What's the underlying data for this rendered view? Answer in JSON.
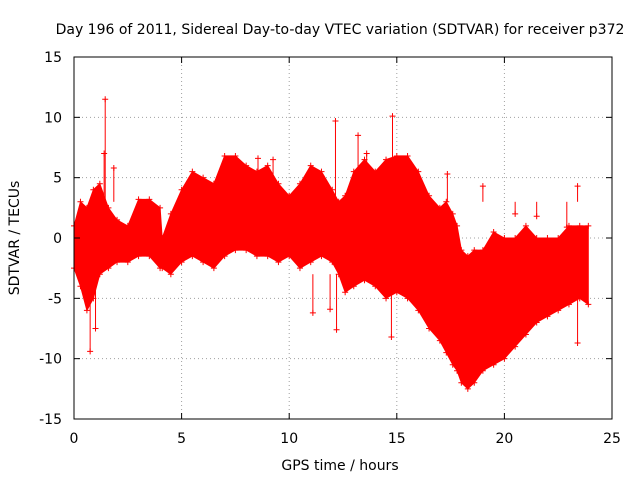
{
  "chart_data": {
    "type": "scatter",
    "title": "Day 196 of 2011, Sidereal Day-to-day VTEC variation (SDTVAR) for receiver p372",
    "xlabel": "GPS time / hours",
    "ylabel": "SDTVAR / TECUs",
    "xlim": [
      0,
      25
    ],
    "ylim": [
      -15,
      15
    ],
    "xticks": [
      0,
      5,
      10,
      15,
      20,
      25
    ],
    "yticks": [
      -15,
      -10,
      -5,
      0,
      5,
      10,
      15
    ],
    "grid": true,
    "series_color": "#ff0000",
    "marker": "+",
    "envelope": {
      "x": [
        0.0,
        0.3,
        0.6,
        0.9,
        1.2,
        1.6,
        2.0,
        2.5,
        3.0,
        3.5,
        4.0,
        4.1,
        4.5,
        5.0,
        5.5,
        6.0,
        6.5,
        7.0,
        7.5,
        8.0,
        8.5,
        9.0,
        9.5,
        10.0,
        10.5,
        11.0,
        11.5,
        12.0,
        12.3,
        12.6,
        13.0,
        13.5,
        14.0,
        14.5,
        15.0,
        15.5,
        16.0,
        16.5,
        17.0,
        17.3,
        17.6,
        17.8,
        18.0,
        18.3,
        18.6,
        19.0,
        19.5,
        20.0,
        20.5,
        21.0,
        21.5,
        22.0,
        22.5,
        23.0,
        23.5,
        23.9
      ],
      "upper": [
        1.0,
        3.0,
        2.5,
        4.0,
        4.5,
        2.5,
        1.5,
        1.0,
        3.2,
        3.2,
        2.5,
        0.0,
        2.0,
        4.0,
        5.5,
        5.0,
        4.5,
        6.8,
        6.8,
        6.0,
        5.5,
        6.0,
        4.5,
        3.5,
        4.5,
        6.0,
        5.5,
        4.0,
        3.0,
        3.5,
        5.5,
        6.5,
        5.5,
        6.5,
        6.8,
        6.8,
        5.5,
        3.5,
        2.5,
        3.0,
        2.0,
        1.0,
        -1.0,
        -1.5,
        -1.0,
        -1.0,
        0.5,
        0.0,
        0.0,
        1.0,
        0.0,
        0.0,
        0.0,
        1.0,
        1.0,
        1.0
      ],
      "lower": [
        -2.5,
        -4.0,
        -6.0,
        -5.0,
        -3.0,
        -2.5,
        -2.0,
        -2.0,
        -1.5,
        -1.5,
        -2.5,
        -2.5,
        -3.0,
        -2.0,
        -1.5,
        -2.0,
        -2.5,
        -1.5,
        -1.0,
        -1.0,
        -1.5,
        -1.5,
        -2.0,
        -1.5,
        -2.5,
        -2.0,
        -1.5,
        -2.0,
        -3.0,
        -4.5,
        -4.0,
        -3.5,
        -4.0,
        -5.0,
        -4.5,
        -5.0,
        -6.0,
        -7.5,
        -8.5,
        -9.5,
        -10.5,
        -11.0,
        -12.0,
        -12.5,
        -12.0,
        -11.0,
        -10.5,
        -10.0,
        -9.0,
        -8.0,
        -7.0,
        -6.5,
        -6.0,
        -5.5,
        -5.0,
        -5.5
      ]
    },
    "outliers": [
      {
        "x": 1.45,
        "y": 11.5
      },
      {
        "x": 1.4,
        "y": 7.0
      },
      {
        "x": 1.85,
        "y": 5.8
      },
      {
        "x": 0.75,
        "y": -9.4
      },
      {
        "x": 1.0,
        "y": -7.5
      },
      {
        "x": 8.55,
        "y": 6.6
      },
      {
        "x": 9.25,
        "y": 6.5
      },
      {
        "x": 12.15,
        "y": 9.7
      },
      {
        "x": 12.2,
        "y": -7.6
      },
      {
        "x": 13.2,
        "y": 8.5
      },
      {
        "x": 13.6,
        "y": 7.0
      },
      {
        "x": 14.8,
        "y": 10.1
      },
      {
        "x": 14.75,
        "y": -8.2
      },
      {
        "x": 11.1,
        "y": -6.2
      },
      {
        "x": 11.9,
        "y": -5.9
      },
      {
        "x": 17.35,
        "y": 5.3
      },
      {
        "x": 19.0,
        "y": 4.3
      },
      {
        "x": 20.5,
        "y": 2.0
      },
      {
        "x": 21.5,
        "y": 1.8
      },
      {
        "x": 23.4,
        "y": 4.3
      },
      {
        "x": 23.4,
        "y": -8.7
      },
      {
        "x": 22.9,
        "y": 0.9
      }
    ]
  }
}
